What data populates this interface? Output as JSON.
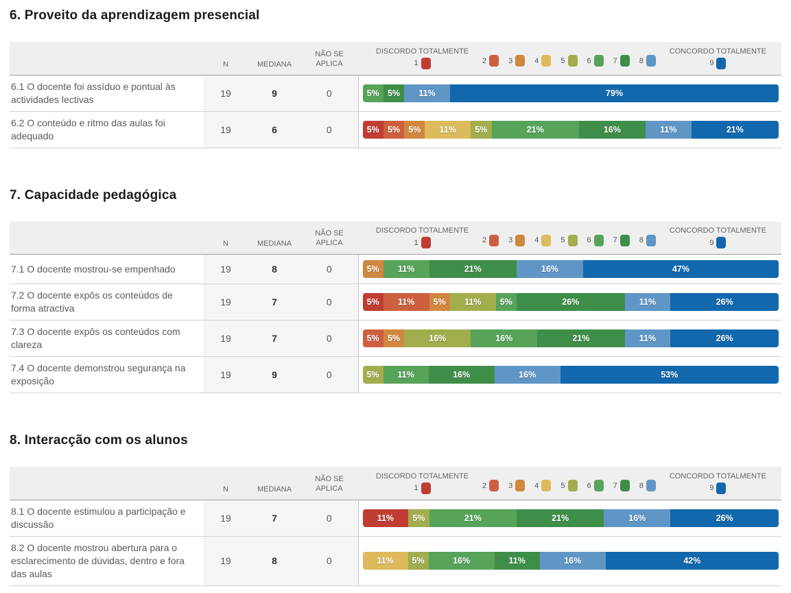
{
  "columns": {
    "n": "N",
    "mediana": "MEDIANA",
    "nao_se_aplica": "NÃO SE APLICA"
  },
  "legend": {
    "min_label": "DISCORDO TOTALMENTE",
    "max_label": "CONCORDO TOTALMENTE",
    "scale": [
      {
        "value": "1",
        "color": "#c03d33"
      },
      {
        "value": "2",
        "color": "#cd5f40"
      },
      {
        "value": "3",
        "color": "#d0873f"
      },
      {
        "value": "4",
        "color": "#ddba5b"
      },
      {
        "value": "5",
        "color": "#a2ad4e"
      },
      {
        "value": "6",
        "color": "#57a35a"
      },
      {
        "value": "7",
        "color": "#3e8e49"
      },
      {
        "value": "8",
        "color": "#6096c6"
      },
      {
        "value": "9",
        "color": "#1268ad"
      }
    ]
  },
  "chart_data": {
    "type": "bar",
    "orientation": "horizontal",
    "stacked": true,
    "unit": "percent",
    "scale_min": 1,
    "scale_max": 9,
    "scale_min_meaning": "DISCORDO TOTALMENTE",
    "scale_max_meaning": "CONCORDO TOTALMENTE",
    "sections": [
      {
        "title": "6. Proveito da aprendizagem presencial",
        "rows": [
          {
            "label": "6.1 O docente foi assíduo e pontual às actividades lectivas",
            "n": "19",
            "mediana": "9",
            "nao_se_aplica": "0",
            "segments": [
              {
                "scale": "6",
                "pct": 5,
                "label": "5%"
              },
              {
                "scale": "7",
                "pct": 5,
                "label": "5%"
              },
              {
                "scale": "8",
                "pct": 11,
                "label": "11%"
              },
              {
                "scale": "9",
                "pct": 79,
                "label": "79%"
              }
            ]
          },
          {
            "label": "6.2 O conteúdo e ritmo das aulas foi adequado",
            "n": "19",
            "mediana": "6",
            "nao_se_aplica": "0",
            "segments": [
              {
                "scale": "1",
                "pct": 5,
                "label": "5%"
              },
              {
                "scale": "2",
                "pct": 5,
                "label": "5%"
              },
              {
                "scale": "3",
                "pct": 5,
                "label": "5%"
              },
              {
                "scale": "4",
                "pct": 11,
                "label": "11%"
              },
              {
                "scale": "5",
                "pct": 5,
                "label": "5%"
              },
              {
                "scale": "6",
                "pct": 21,
                "label": "21%"
              },
              {
                "scale": "7",
                "pct": 16,
                "label": "16%"
              },
              {
                "scale": "8",
                "pct": 11,
                "label": "11%"
              },
              {
                "scale": "9",
                "pct": 21,
                "label": "21%"
              }
            ]
          }
        ]
      },
      {
        "title": "7. Capacidade pedagógica",
        "rows": [
          {
            "label": "7.1 O docente mostrou-se empenhado",
            "n": "19",
            "mediana": "8",
            "nao_se_aplica": "0",
            "segments": [
              {
                "scale": "3",
                "pct": 5,
                "label": "5%"
              },
              {
                "scale": "6",
                "pct": 11,
                "label": "11%"
              },
              {
                "scale": "7",
                "pct": 21,
                "label": "21%"
              },
              {
                "scale": "8",
                "pct": 16,
                "label": "16%"
              },
              {
                "scale": "9",
                "pct": 47,
                "label": "47%"
              }
            ]
          },
          {
            "label": "7.2 O docente expôs os conteúdos de forma atractiva",
            "n": "19",
            "mediana": "7",
            "nao_se_aplica": "0",
            "segments": [
              {
                "scale": "1",
                "pct": 5,
                "label": "5%"
              },
              {
                "scale": "2",
                "pct": 11,
                "label": "11%"
              },
              {
                "scale": "3",
                "pct": 5,
                "label": "5%"
              },
              {
                "scale": "5",
                "pct": 11,
                "label": "11%"
              },
              {
                "scale": "6",
                "pct": 5,
                "label": "5%"
              },
              {
                "scale": "7",
                "pct": 26,
                "label": "26%"
              },
              {
                "scale": "8",
                "pct": 11,
                "label": "11%"
              },
              {
                "scale": "9",
                "pct": 26,
                "label": "26%"
              }
            ]
          },
          {
            "label": "7.3 O docente expôs os conteúdos com clareza",
            "n": "19",
            "mediana": "7",
            "nao_se_aplica": "0",
            "segments": [
              {
                "scale": "2",
                "pct": 5,
                "label": "5%"
              },
              {
                "scale": "3",
                "pct": 5,
                "label": "5%"
              },
              {
                "scale": "5",
                "pct": 16,
                "label": "16%"
              },
              {
                "scale": "6",
                "pct": 16,
                "label": "16%"
              },
              {
                "scale": "7",
                "pct": 21,
                "label": "21%"
              },
              {
                "scale": "8",
                "pct": 11,
                "label": "11%"
              },
              {
                "scale": "9",
                "pct": 26,
                "label": "26%"
              }
            ]
          },
          {
            "label": "7.4 O docente demonstrou segurança na exposição",
            "n": "19",
            "mediana": "9",
            "nao_se_aplica": "0",
            "segments": [
              {
                "scale": "5",
                "pct": 5,
                "label": "5%"
              },
              {
                "scale": "6",
                "pct": 11,
                "label": "11%"
              },
              {
                "scale": "7",
                "pct": 16,
                "label": "16%"
              },
              {
                "scale": "8",
                "pct": 16,
                "label": "16%"
              },
              {
                "scale": "9",
                "pct": 53,
                "label": "53%"
              }
            ]
          }
        ]
      },
      {
        "title": "8. Interacção com os alunos",
        "rows": [
          {
            "label": "8.1 O docente estimulou a participação e discussão",
            "n": "19",
            "mediana": "7",
            "nao_se_aplica": "0",
            "segments": [
              {
                "scale": "1",
                "pct": 11,
                "label": "11%"
              },
              {
                "scale": "5",
                "pct": 5,
                "label": "5%"
              },
              {
                "scale": "6",
                "pct": 21,
                "label": "21%"
              },
              {
                "scale": "7",
                "pct": 21,
                "label": "21%"
              },
              {
                "scale": "8",
                "pct": 16,
                "label": "16%"
              },
              {
                "scale": "9",
                "pct": 26,
                "label": "26%"
              }
            ]
          },
          {
            "label": "8.2 O docente mostrou abertura para o esclarecimento de dúvidas, dentro e fora das aulas",
            "n": "19",
            "mediana": "8",
            "nao_se_aplica": "0",
            "segments": [
              {
                "scale": "4",
                "pct": 11,
                "label": "11%"
              },
              {
                "scale": "5",
                "pct": 5,
                "label": "5%"
              },
              {
                "scale": "6",
                "pct": 16,
                "label": "16%"
              },
              {
                "scale": "7",
                "pct": 11,
                "label": "11%"
              },
              {
                "scale": "8",
                "pct": 16,
                "label": "16%"
              },
              {
                "scale": "9",
                "pct": 42,
                "label": "42%"
              }
            ]
          }
        ]
      }
    ]
  }
}
